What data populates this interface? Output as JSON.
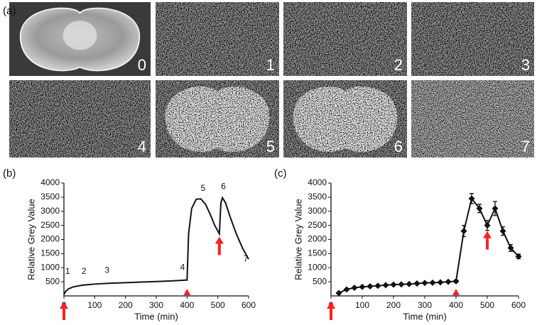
{
  "panel_labels": [
    "(a)",
    "(b)",
    "(c)"
  ],
  "image_labels": [
    "0",
    "1",
    "2",
    "3",
    "4",
    "5",
    "6",
    "7"
  ],
  "chart_data": [
    {
      "type": "line",
      "xlabel": "Time (min)",
      "ylabel": "Relative Grey Value",
      "x": [
        0,
        5,
        15,
        30,
        60,
        100,
        150,
        200,
        250,
        300,
        350,
        395,
        400,
        405,
        415,
        430,
        445,
        460,
        475,
        490,
        500,
        505,
        510,
        515,
        525,
        540,
        560,
        580,
        600
      ],
      "series": [
        {
          "color": "#111111",
          "values": [
            50,
            150,
            250,
            320,
            380,
            420,
            450,
            470,
            490,
            510,
            530,
            560,
            560,
            2200,
            3100,
            3430,
            3440,
            3250,
            2900,
            2500,
            2300,
            2200,
            3300,
            3480,
            3300,
            2800,
            2200,
            1700,
            1300
          ]
        }
      ],
      "point_labels": [
        "1",
        "2",
        "3",
        "4",
        "5",
        "6",
        "7"
      ],
      "arrows": [
        {
          "x": 0,
          "y": -200
        },
        {
          "x": 505,
          "y": 2100
        }
      ],
      "triangles": [
        400
      ],
      "marker_color": "#ff2020",
      "xlim": [
        0,
        600
      ],
      "xticks": [
        0,
        100,
        200,
        300,
        400,
        500,
        600
      ],
      "ylim": [
        0,
        4000
      ],
      "yticks": [
        500,
        1000,
        1500,
        2000,
        2500,
        3000,
        3500,
        4000
      ]
    },
    {
      "type": "errorbar",
      "xlabel": "Time (min)",
      "ylabel": "Relative Grey Value",
      "x": [
        25,
        50,
        75,
        100,
        125,
        150,
        175,
        200,
        225,
        250,
        275,
        300,
        325,
        350,
        375,
        400,
        425,
        450,
        475,
        500,
        525,
        550,
        575,
        600
      ],
      "series": [
        {
          "color": "#111111",
          "values": [
            100,
            230,
            290,
            320,
            340,
            360,
            380,
            400,
            410,
            420,
            440,
            460,
            470,
            480,
            500,
            520,
            2300,
            3450,
            3100,
            2500,
            3100,
            2300,
            1700,
            1400
          ],
          "errors": [
            20,
            30,
            30,
            30,
            30,
            30,
            30,
            30,
            30,
            30,
            30,
            30,
            30,
            30,
            30,
            40,
            200,
            180,
            150,
            180,
            250,
            150,
            120,
            80
          ]
        }
      ],
      "arrows": [
        {
          "x": 0,
          "y": -200
        },
        {
          "x": 500,
          "y": 2300
        }
      ],
      "triangles": [
        400
      ],
      "marker_color": "#ff2020",
      "xlim": [
        0,
        600
      ],
      "xticks": [
        0,
        100,
        200,
        300,
        400,
        500,
        600
      ],
      "ylim": [
        0,
        4000
      ],
      "yticks": [
        500,
        1000,
        1500,
        2000,
        2500,
        3000,
        3500,
        4000
      ]
    }
  ]
}
